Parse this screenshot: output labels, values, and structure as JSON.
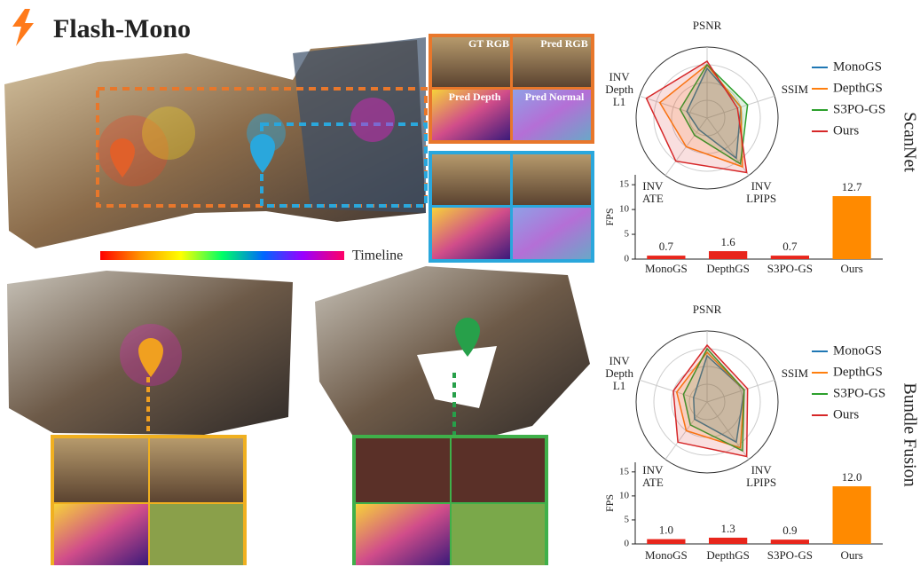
{
  "title": "Flash-Mono",
  "timeline_label": "Timeline",
  "inset_labels": [
    "GT RGB",
    "Pred RGB",
    "Pred Depth",
    "Pred Normal"
  ],
  "chart_data": [
    {
      "type": "radar",
      "dataset": "ScanNet",
      "axes": [
        "PSNR",
        "SSIM",
        "INV LPIPS",
        "INV ATE",
        "INV Depth L1"
      ],
      "rlim": [
        0,
        1
      ],
      "rticks": [
        0.25,
        0.5,
        0.75,
        1
      ],
      "legend": "right",
      "series": [
        {
          "name": "MonoGS",
          "color": "#1f77b4",
          "values": [
            0.7,
            0.5,
            0.7,
            0.2,
            0.3
          ]
        },
        {
          "name": "DepthGS",
          "color": "#ff7f0e",
          "values": [
            0.75,
            0.5,
            0.85,
            0.5,
            0.7
          ]
        },
        {
          "name": "S3PO-GS",
          "color": "#2ca02c",
          "values": [
            0.75,
            0.6,
            0.8,
            0.3,
            0.4
          ]
        },
        {
          "name": "Ours",
          "color": "#d62728",
          "values": [
            0.8,
            0.45,
            0.95,
            0.75,
            0.9
          ]
        }
      ]
    },
    {
      "type": "bar",
      "ylabel": "FPS",
      "categories": [
        "MonoGS",
        "DepthGS",
        "S3PO-GS",
        "Ours"
      ],
      "values": [
        0.7,
        1.6,
        0.7,
        12.7
      ],
      "colors": [
        "#e8261c",
        "#e8261c",
        "#e8261c",
        "#ff8a00"
      ],
      "ylim": [
        0,
        17
      ],
      "yticks": [
        0,
        5,
        10,
        15
      ]
    },
    {
      "type": "radar",
      "dataset": "Bundle Fusion",
      "axes": [
        "PSNR",
        "SSIM",
        "INV LPIPS",
        "INV ATE",
        "INV Depth L1"
      ],
      "rlim": [
        0,
        1
      ],
      "rticks": [
        0.25,
        0.5,
        0.75,
        1
      ],
      "legend": "right",
      "series": [
        {
          "name": "MonoGS",
          "color": "#1f77b4",
          "values": [
            0.65,
            0.55,
            0.7,
            0.3,
            0.2
          ]
        },
        {
          "name": "DepthGS",
          "color": "#ff7f0e",
          "values": [
            0.7,
            0.55,
            0.8,
            0.5,
            0.45
          ]
        },
        {
          "name": "S3PO-GS",
          "color": "#2ca02c",
          "values": [
            0.75,
            0.55,
            0.85,
            0.4,
            0.35
          ]
        },
        {
          "name": "Ours",
          "color": "#d62728",
          "values": [
            0.8,
            0.6,
            0.95,
            0.7,
            0.5
          ]
        }
      ]
    },
    {
      "type": "bar",
      "ylabel": "FPS",
      "categories": [
        "MonoGS",
        "DepthGS",
        "S3PO-GS",
        "Ours"
      ],
      "values": [
        1.0,
        1.3,
        0.9,
        12.0
      ],
      "value_labels": [
        "1.0",
        "1.3",
        "0.9",
        "12.0"
      ],
      "colors": [
        "#e8261c",
        "#e8261c",
        "#e8261c",
        "#ff8a00"
      ],
      "ylim": [
        0,
        17
      ],
      "yticks": [
        0,
        5,
        10,
        15
      ]
    }
  ]
}
